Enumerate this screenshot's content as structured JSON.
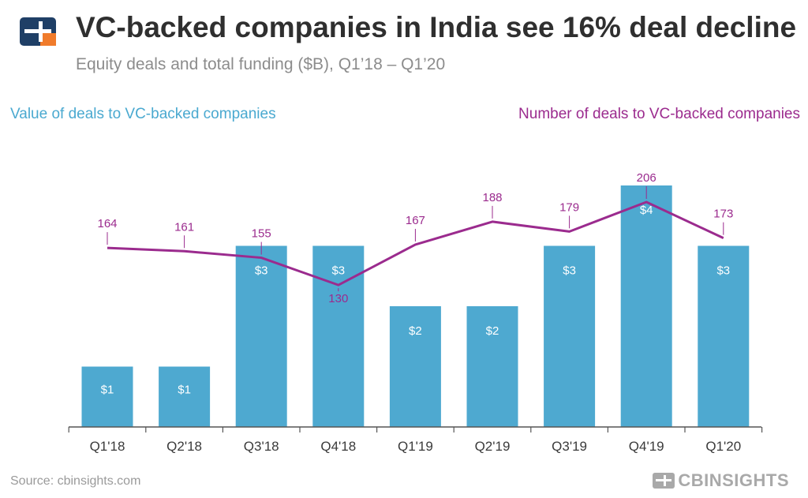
{
  "header": {
    "title": "VC-backed companies in India see 16% deal decline",
    "subtitle": "Equity deals and total funding ($B), Q1’18 – Q1’20"
  },
  "legend": {
    "bar_label": "Value of deals to VC-backed companies",
    "line_label": "Number of deals to VC-backed companies"
  },
  "footer": {
    "source": "Source: cbinsights.com",
    "brand": "CBINSIGHTS"
  },
  "colors": {
    "bar": "#4ea9d0",
    "line": "#9b2b8e",
    "logo_dark": "#1f3f66",
    "logo_accent": "#f07b2b"
  },
  "chart_data": {
    "type": "bar+line",
    "categories": [
      "Q1'18",
      "Q2'18",
      "Q3'18",
      "Q4'18",
      "Q1'19",
      "Q2'19",
      "Q3'19",
      "Q4'19",
      "Q1'20"
    ],
    "series": [
      {
        "name": "Value of deals to VC-backed companies",
        "type": "bar",
        "values": [
          1,
          1,
          3,
          3,
          2,
          2,
          3,
          4,
          3
        ],
        "labels": [
          "$1",
          "$1",
          "$3",
          "$3",
          "$2",
          "$2",
          "$3",
          "$4",
          "$3"
        ]
      },
      {
        "name": "Number of deals to VC-backed companies",
        "type": "line",
        "values": [
          164,
          161,
          155,
          130,
          167,
          188,
          179,
          206,
          173
        ],
        "labels": [
          "164",
          "161",
          "155",
          "130",
          "167",
          "188",
          "179",
          "206",
          "173"
        ]
      }
    ],
    "bar_axis_range": [
      0,
      4
    ],
    "line_axis_range": [
      0,
      206
    ]
  }
}
